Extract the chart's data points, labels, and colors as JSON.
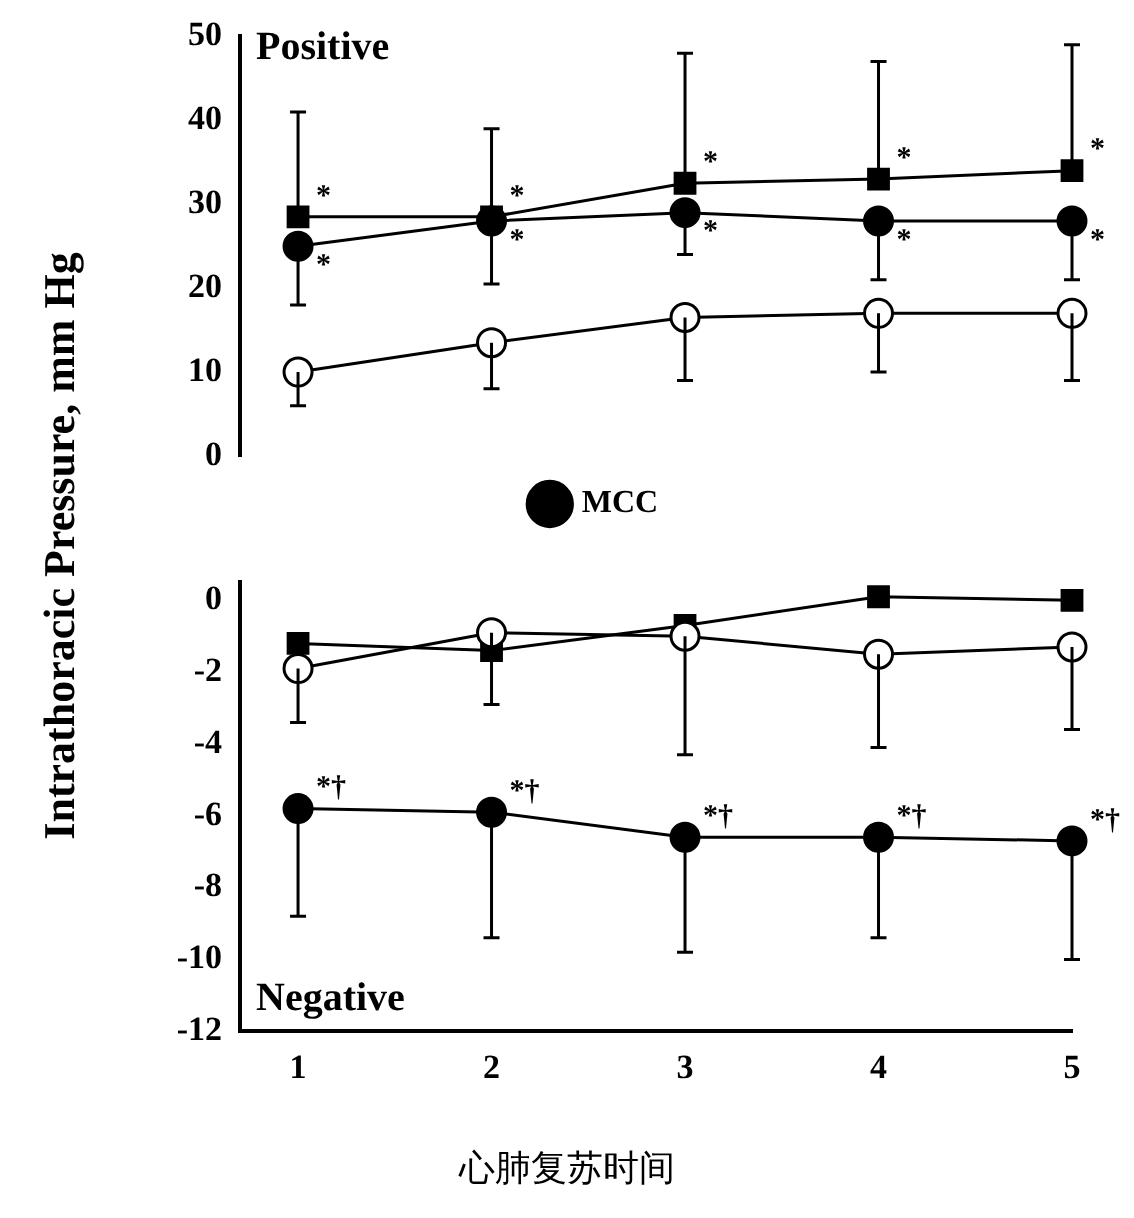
{
  "chart_data": [
    {
      "type": "line",
      "ylabel": "Intrathoracic Pressure, mm Hg",
      "x": [
        1,
        2,
        3,
        4,
        5
      ],
      "xlim": [
        0.7,
        5
      ],
      "xticks": [
        1,
        2,
        3,
        4,
        5
      ],
      "ylim": [
        0,
        50
      ],
      "yticks": [
        0,
        10,
        20,
        30,
        40,
        50
      ],
      "tick_labels": "y",
      "legend": "bottom",
      "grid": false,
      "annotations": [
        "Positive",
        {
          "text": "*",
          "x": 1,
          "y": 28.5
        },
        {
          "text": "*",
          "x": 2,
          "y": 28.5
        },
        {
          "text": "*",
          "x": 3,
          "y": 32.5
        },
        {
          "text": "*",
          "x": 4,
          "y": 33
        },
        {
          "text": "*",
          "x": 5,
          "y": 34
        },
        {
          "text": "*",
          "x": 1,
          "y": 25
        },
        {
          "text": "*",
          "x": 2,
          "y": 28
        },
        {
          "text": "*",
          "x": 3,
          "y": 29
        },
        {
          "text": "*",
          "x": 4,
          "y": 28
        },
        {
          "text": "*",
          "x": 5,
          "y": 28
        }
      ],
      "series": [
        {
          "name": "MCC",
          "color": "#000000",
          "marker": "circle",
          "values": [
            25,
            28,
            29,
            28,
            28
          ],
          "errors": [
            [
              18,
              25
            ],
            [
              20.5,
              28
            ],
            [
              24,
              29
            ],
            [
              21,
              28
            ],
            [
              21,
              28
            ]
          ]
        },
        {
          "color": "#ffffff",
          "marker": "circle",
          "values": [
            10,
            13.5,
            16.5,
            17,
            17
          ],
          "errors": [
            [
              6,
              10
            ],
            [
              8,
              13.5
            ],
            [
              9,
              16.5
            ],
            [
              10,
              17
            ],
            [
              9,
              17
            ]
          ]
        },
        {
          "color": "#000000",
          "marker": "square",
          "values": [
            28.5,
            28.5,
            32.5,
            33,
            34
          ],
          "errors": [
            [
              28.5,
              41
            ],
            [
              28.5,
              39
            ],
            [
              32.5,
              48
            ],
            [
              33,
              47
            ],
            [
              34,
              49
            ]
          ]
        }
      ]
    },
    {
      "type": "line",
      "xlabel": "心肺复苏时间",
      "x": [
        1,
        2,
        3,
        4,
        5
      ],
      "xlim": [
        0.7,
        5
      ],
      "xticks": [
        1,
        2,
        3,
        4,
        5
      ],
      "ylim": [
        -12,
        0.5
      ],
      "yticks": [
        -12,
        -10,
        -8,
        -6,
        -4,
        -2,
        0
      ],
      "grid": false,
      "annotations": [
        "Negative",
        {
          "text": "*†",
          "x": 1,
          "y": -5.8
        },
        {
          "text": "*†",
          "x": 2,
          "y": -5.9
        },
        {
          "text": "*†",
          "x": 3,
          "y": -6.6
        },
        {
          "text": "*†",
          "x": 4,
          "y": -6.6
        },
        {
          "text": "*†",
          "x": 5,
          "y": -6.7
        }
      ],
      "series": [
        {
          "color": "#000000",
          "marker": "circle",
          "values": [
            -5.8,
            -5.9,
            -6.6,
            -6.6,
            -6.7
          ],
          "errors": [
            [
              -8.8,
              -5.8
            ],
            [
              -9.4,
              -5.9
            ],
            [
              -9.8,
              -6.6
            ],
            [
              -9.4,
              -6.6
            ],
            [
              -10,
              -6.7
            ]
          ]
        },
        {
          "color": "#ffffff",
          "marker": "circle",
          "values": [
            -1.9,
            -0.9,
            -1.0,
            -1.5,
            -1.3
          ],
          "errors": [
            [
              -3.4,
              -1.9
            ],
            [
              -2.9,
              -0.9
            ],
            [
              -4.3,
              -1.0
            ],
            [
              -4.1,
              -1.5
            ],
            [
              -3.6,
              -1.3
            ]
          ]
        },
        {
          "color": "#000000",
          "marker": "square",
          "values": [
            -1.2,
            -1.4,
            -0.7,
            0.1,
            0
          ]
        }
      ]
    }
  ]
}
